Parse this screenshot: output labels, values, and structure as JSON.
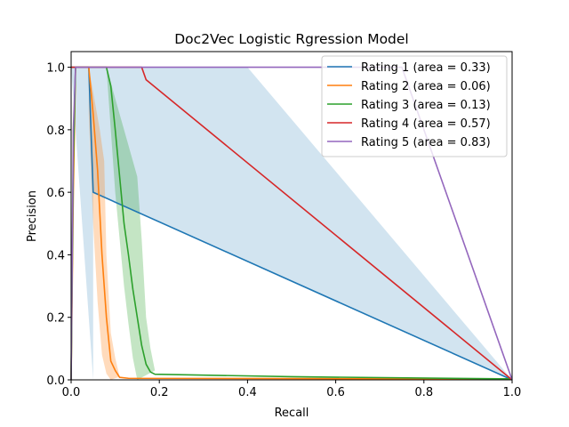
{
  "chart_data": {
    "type": "line",
    "title": "Doc2Vec Logistic Rgression Model",
    "xlabel": "Recall",
    "ylabel": "Precision",
    "xlim": [
      0,
      1
    ],
    "ylim": [
      0,
      1.05
    ],
    "xticks": [
      "0.0",
      "0.2",
      "0.4",
      "0.6",
      "0.8",
      "1.0"
    ],
    "yticks": [
      "0.0",
      "0.2",
      "0.4",
      "0.6",
      "0.8",
      "1.0"
    ],
    "grid": false,
    "legend_position": "top-right",
    "series": [
      {
        "name": "Rating 1 (area = 0.33)",
        "color": "#1f77b4",
        "points": [
          [
            0.0,
            1.0
          ],
          [
            0.04,
            1.0
          ],
          [
            0.05,
            0.6
          ],
          [
            1.0,
            0.0
          ]
        ],
        "band": {
          "upper": [
            [
              0.0,
              1.0
            ],
            [
              0.4,
              1.0
            ],
            [
              1.0,
              0.0
            ]
          ],
          "lower": [
            [
              0.05,
              0.0
            ],
            [
              0.05,
              0.6
            ]
          ]
        }
      },
      {
        "name": "Rating 2 (area = 0.06)",
        "color": "#ff7f0e",
        "points": [
          [
            0.0,
            0.0
          ],
          [
            0.005,
            0.6
          ],
          [
            0.01,
            1.0
          ],
          [
            0.04,
            1.0
          ],
          [
            0.05,
            0.85
          ],
          [
            0.06,
            0.67
          ],
          [
            0.07,
            0.4
          ],
          [
            0.08,
            0.2
          ],
          [
            0.09,
            0.06
          ],
          [
            0.1,
            0.03
          ],
          [
            0.11,
            0.008
          ],
          [
            0.13,
            0.005
          ],
          [
            0.5,
            0.004
          ],
          [
            1.0,
            0.003
          ]
        ],
        "band": {
          "upper": [
            [
              0.04,
              1.0
            ],
            [
              0.065,
              0.8
            ],
            [
              0.075,
              0.7
            ],
            [
              0.08,
              0.4
            ],
            [
              0.09,
              0.15
            ],
            [
              0.1,
              0.07
            ],
            [
              0.11,
              0.01
            ]
          ],
          "lower": [
            [
              0.04,
              0.85
            ],
            [
              0.05,
              0.5
            ],
            [
              0.06,
              0.25
            ],
            [
              0.07,
              0.08
            ],
            [
              0.08,
              0.02
            ],
            [
              0.09,
              0.0
            ]
          ]
        }
      },
      {
        "name": "Rating 3 (area = 0.13)",
        "color": "#2ca02c",
        "points": [
          [
            0.0,
            0.0
          ],
          [
            0.005,
            0.7
          ],
          [
            0.01,
            1.0
          ],
          [
            0.08,
            1.0
          ],
          [
            0.09,
            0.94
          ],
          [
            0.1,
            0.8
          ],
          [
            0.11,
            0.65
          ],
          [
            0.12,
            0.5
          ],
          [
            0.13,
            0.4
          ],
          [
            0.14,
            0.29
          ],
          [
            0.15,
            0.2
          ],
          [
            0.16,
            0.11
          ],
          [
            0.17,
            0.05
          ],
          [
            0.18,
            0.025
          ],
          [
            0.19,
            0.018
          ],
          [
            0.5,
            0.01
          ],
          [
            1.0,
            0.003
          ]
        ],
        "band": {
          "upper": [
            [
              0.08,
              1.0
            ],
            [
              0.1,
              0.9
            ],
            [
              0.13,
              0.75
            ],
            [
              0.14,
              0.7
            ],
            [
              0.15,
              0.65
            ],
            [
              0.16,
              0.45
            ],
            [
              0.17,
              0.2
            ],
            [
              0.18,
              0.1
            ],
            [
              0.19,
              0.03
            ]
          ],
          "lower": [
            [
              0.09,
              0.8
            ],
            [
              0.1,
              0.6
            ],
            [
              0.11,
              0.45
            ],
            [
              0.12,
              0.3
            ],
            [
              0.13,
              0.18
            ],
            [
              0.14,
              0.07
            ],
            [
              0.15,
              0.0
            ]
          ]
        }
      },
      {
        "name": "Rating 4 (area = 0.57)",
        "color": "#d62728",
        "points": [
          [
            0.0,
            1.0
          ],
          [
            0.16,
            1.0
          ],
          [
            0.17,
            0.96
          ],
          [
            1.0,
            0.0
          ]
        ]
      },
      {
        "name": "Rating 5 (area = 0.83)",
        "color": "#9467bd",
        "points": [
          [
            0.0,
            0.0
          ],
          [
            0.005,
            0.8
          ],
          [
            0.01,
            1.0
          ],
          [
            0.75,
            1.0
          ],
          [
            1.0,
            0.0
          ]
        ]
      }
    ]
  }
}
